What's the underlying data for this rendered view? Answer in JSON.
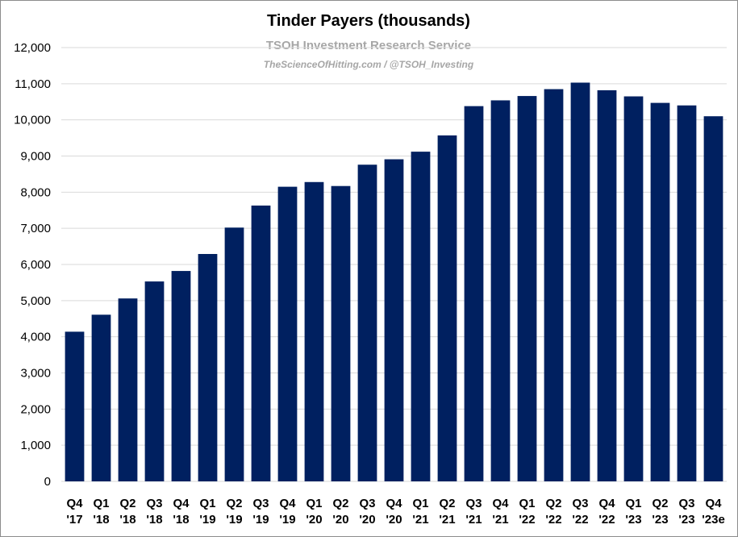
{
  "chart_data": {
    "type": "bar",
    "title": "Tinder Payers (thousands)",
    "watermark": "TSOH Investment Research Service",
    "watermark_sub": "TheScienceOfHitting.com / @TSOH_Investing",
    "xlabel": "",
    "ylabel": "",
    "ylim": [
      0,
      12000
    ],
    "y_ticks": [
      0,
      1000,
      2000,
      3000,
      4000,
      5000,
      6000,
      7000,
      8000,
      9000,
      10000,
      11000,
      12000
    ],
    "y_tick_labels": [
      "0",
      "1,000",
      "2,000",
      "3,000",
      "4,000",
      "5,000",
      "6,000",
      "7,000",
      "8,000",
      "9,000",
      "10,000",
      "11,000",
      "12,000"
    ],
    "grid": true,
    "legend": "none",
    "bar_color": "#002060",
    "categories": [
      [
        "Q4",
        "'17"
      ],
      [
        "Q1",
        "'18"
      ],
      [
        "Q2",
        "'18"
      ],
      [
        "Q3",
        "'18"
      ],
      [
        "Q4",
        "'18"
      ],
      [
        "Q1",
        "'19"
      ],
      [
        "Q2",
        "'19"
      ],
      [
        "Q3",
        "'19"
      ],
      [
        "Q4",
        "'19"
      ],
      [
        "Q1",
        "'20"
      ],
      [
        "Q2",
        "'20"
      ],
      [
        "Q3",
        "'20"
      ],
      [
        "Q4",
        "'20"
      ],
      [
        "Q1",
        "'21"
      ],
      [
        "Q2",
        "'21"
      ],
      [
        "Q3",
        "'21"
      ],
      [
        "Q4",
        "'21"
      ],
      [
        "Q1",
        "'22"
      ],
      [
        "Q2",
        "'22"
      ],
      [
        "Q3",
        "'22"
      ],
      [
        "Q4",
        "'22"
      ],
      [
        "Q1",
        "'23"
      ],
      [
        "Q2",
        "'23"
      ],
      [
        "Q3",
        "'23"
      ],
      [
        "Q4",
        "'23e"
      ]
    ],
    "values": [
      4140,
      4610,
      5060,
      5530,
      5820,
      6290,
      7020,
      7630,
      8150,
      8280,
      8170,
      8760,
      8910,
      9120,
      9570,
      10380,
      10540,
      10660,
      10850,
      11030,
      10820,
      10650,
      10470,
      10400,
      10100
    ]
  }
}
